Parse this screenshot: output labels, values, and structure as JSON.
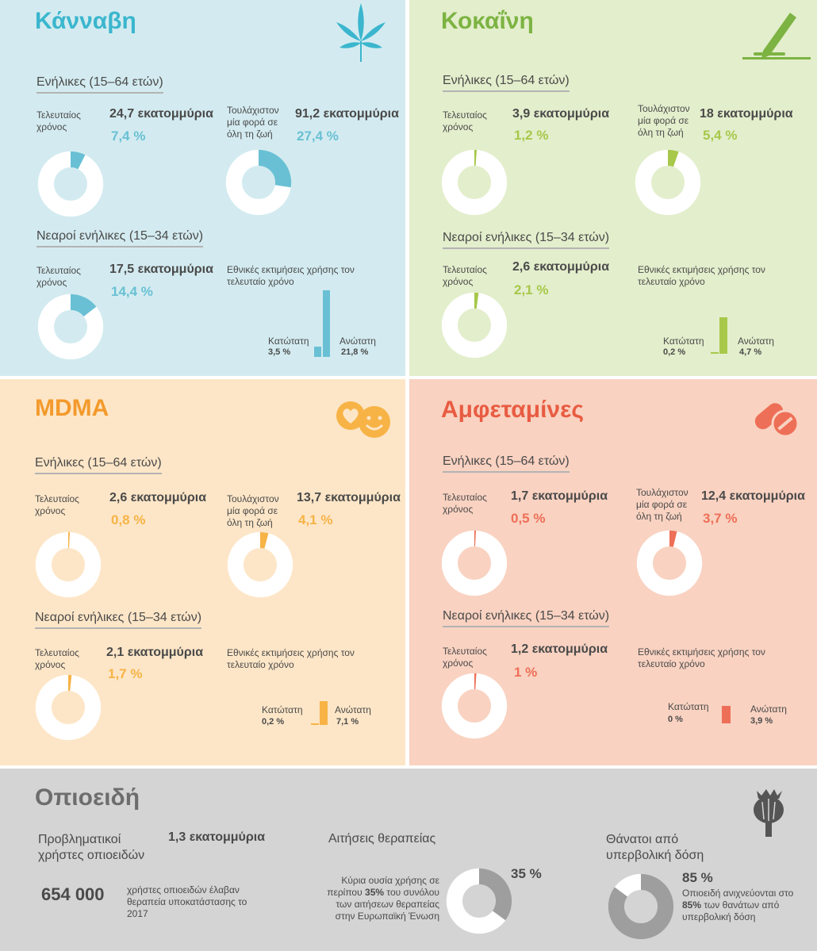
{
  "colors": {
    "cannabis_bg": "#d3ebf0",
    "cannabis": "#69c0d4",
    "cannabis_title": "#3bb6ce",
    "cocaine_bg": "#e3eecc",
    "cocaine": "#a7c84a",
    "cocaine_title": "#7cb342",
    "mdma_bg": "#fde6c7",
    "mdma": "#f7b346",
    "mdma_title": "#f39a2c",
    "amph_bg": "#f9d2c1",
    "amph": "#ee6f57",
    "amph_title": "#e85c42",
    "opioid_bg": "#d4d4d4",
    "opioid": "#9e9e9e",
    "opioid_title": "#6d6d6d"
  },
  "cannabis": {
    "title": "Κάνναβη",
    "icon": "cannabis-leaf-icon",
    "adults_heading": "Ενήλικες (15–64 ετών)",
    "last_year_label": "Τελευταίος χρόνος",
    "last_year_count": "24,7 εκατομμύρια",
    "last_year_pct": "7,4 %",
    "last_year_value": 7.4,
    "lifetime_label": "Τουλάχιστον μία φορά σε όλη τη ζωή",
    "lifetime_count": "91,2 εκατομμύρια",
    "lifetime_pct": "27,4 %",
    "lifetime_value": 27.4,
    "young_heading": "Νεαροί ενήλικες (15–34 ετών)",
    "young_label": "Τελευταίος χρόνος",
    "young_count": "17,5 εκατομμύρια",
    "young_pct": "14,4 %",
    "young_value": 14.4,
    "national_label": "Εθνικές εκτιμήσεις χρήσης τον τελευταίο χρόνο",
    "low_label": "Κατώτατη",
    "low_value_text": "3,5 %",
    "low_value": 3.5,
    "high_label": "Ανώτατη",
    "high_value_text": "21,8 %",
    "high_value": 21.8
  },
  "cocaine": {
    "title": "Κοκαΐνη",
    "icon": "cocaine-line-icon",
    "adults_heading": "Ενήλικες (15–64 ετών)",
    "last_year_label": "Τελευταίος χρόνος",
    "last_year_count": "3,9 εκατομμύρια",
    "last_year_pct": "1,2 %",
    "last_year_value": 1.2,
    "lifetime_label": "Τουλάχιστον μία φορά σε όλη τη ζωή",
    "lifetime_count": "18 εκατομμύρια",
    "lifetime_pct": "5,4 %",
    "lifetime_value": 5.4,
    "young_heading": "Νεαροί ενήλικες (15–34 ετών)",
    "young_label": "Τελευταίος χρόνος",
    "young_count": "2,6 εκατομμύρια",
    "young_pct": "2,1 %",
    "young_value": 2.1,
    "national_label": "Εθνικές εκτιμήσεις χρήσης τον τελευταίο χρόνο",
    "low_label": "Κατώτατη",
    "low_value_text": "0,2 %",
    "low_value": 0.2,
    "high_label": "Ανώτατη",
    "high_value_text": "4,7 %",
    "high_value": 4.7
  },
  "mdma": {
    "title": "MDMA",
    "icon": "smiley-pills-icon",
    "adults_heading": "Ενήλικες (15–64 ετών)",
    "last_year_label": "Τελευταίος χρόνος",
    "last_year_count": "2,6 εκατομμύρια",
    "last_year_pct": "0,8 %",
    "last_year_value": 0.8,
    "lifetime_label": "Τουλάχιστον μία φορά σε όλη τη ζωή",
    "lifetime_count": "13,7 εκατομμύρια",
    "lifetime_pct": "4,1 %",
    "lifetime_value": 4.1,
    "young_heading": "Νεαροί ενήλικες (15–34 ετών)",
    "young_label": "Τελευταίος χρόνος",
    "young_count": "2,1 εκατομμύρια",
    "young_pct": "1,7 %",
    "young_value": 1.7,
    "national_label": "Εθνικές εκτιμήσεις χρήσης τον τελευταίο χρόνο",
    "low_label": "Κατώτατη",
    "low_value_text": "0,2 %",
    "low_value": 0.2,
    "high_label": "Ανώτατη",
    "high_value_text": "7,1 %",
    "high_value": 7.1
  },
  "amph": {
    "title": "Αμφεταμίνες",
    "icon": "pills-icon",
    "adults_heading": "Ενήλικες (15–64 ετών)",
    "last_year_label": "Τελευταίος χρόνος",
    "last_year_count": "1,7 εκατομμύρια",
    "last_year_pct": "0,5 %",
    "last_year_value": 0.5,
    "lifetime_label": "Τουλάχιστον μία φορά σε όλη τη ζωή",
    "lifetime_count": "12,4 εκατομμύρια",
    "lifetime_pct": "3,7 %",
    "lifetime_value": 3.7,
    "young_heading": "Νεαροί ενήλικες (15–34 ετών)",
    "young_label": "Τελευταίος χρόνος",
    "young_count": "1,2 εκατομμύρια",
    "young_pct": "1 %",
    "young_value": 1,
    "national_label": "Εθνικές εκτιμήσεις χρήσης τον τελευταίο χρόνο",
    "low_label": "Κατώτατη",
    "low_value_text": "0 %",
    "low_value": 0,
    "high_label": "Ανώτατη",
    "high_value_text": "3,9 %",
    "high_value": 3.9
  },
  "opioids": {
    "title": "Οπιοειδή",
    "icon": "poppy-icon",
    "problem_label": "Προβληματικοί χρήστες οπιοειδών",
    "problem_count": "1,3 εκατομμύρια",
    "subst_count": "654 000",
    "subst_text": "χρήστες οπιοειδών έλαβαν θεραπεία υποκατάστασης το 2017",
    "treat_heading": "Αιτήσεις θεραπείας",
    "treat_pct": "35 %",
    "treat_value": 35,
    "treat_text_1": "Κύρια ουσία χρήσης σε περίπου ",
    "treat_text_bold": "35%",
    "treat_text_2": " του συνόλου των αιτήσεων θεραπείας στην Ευρωπαϊκή Ένωση",
    "deaths_heading": "Θάνατοι από υπερβολική δόση",
    "deaths_pct": "85 %",
    "deaths_value": 85,
    "deaths_text_1": "Οπιοειδή ανιχνεύονται στο ",
    "deaths_text_bold": "85%",
    "deaths_text_2": " των θανάτων από υπερβολική δόση"
  }
}
